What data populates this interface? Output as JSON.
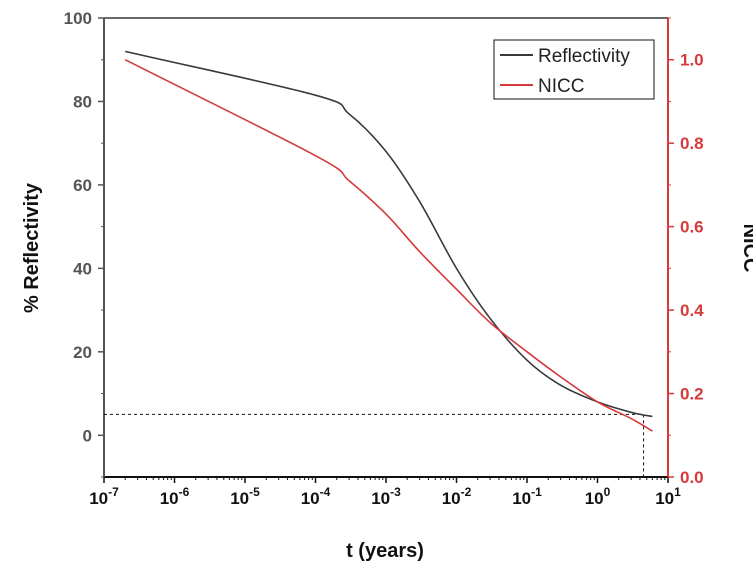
{
  "chart_data": {
    "type": "line",
    "title": "",
    "xlabel": "t (years)",
    "ylabel_left": "% Reflectivity",
    "ylabel_right": "NICC",
    "x_scale": "log",
    "x_ticks": [
      {
        "value": 1e-07,
        "base": "10",
        "exp": "-7"
      },
      {
        "value": 1e-06,
        "base": "10",
        "exp": "-6"
      },
      {
        "value": 1e-05,
        "base": "10",
        "exp": "-5"
      },
      {
        "value": 0.0001,
        "base": "10",
        "exp": "-4"
      },
      {
        "value": 0.001,
        "base": "10",
        "exp": "-3"
      },
      {
        "value": 0.01,
        "base": "10",
        "exp": "-2"
      },
      {
        "value": 0.1,
        "base": "10",
        "exp": "-1"
      },
      {
        "value": 1,
        "base": "10",
        "exp": "0"
      },
      {
        "value": 10,
        "base": "10",
        "exp": "1"
      }
    ],
    "xlim": [
      1e-07,
      10
    ],
    "ylim_left": [
      -10,
      100
    ],
    "ylim_right": [
      0.0,
      1.1
    ],
    "yticks_left": [
      "0",
      "20",
      "40",
      "60",
      "80",
      "100"
    ],
    "yticks_right": [
      "0.0",
      "0.2",
      "0.4",
      "0.6",
      "0.8",
      "1.0"
    ],
    "legend_position": "top-right",
    "grid": false,
    "series": [
      {
        "name": "Reflectivity",
        "axis": "left",
        "color": "#3a3a3a",
        "x": [
          2e-07,
          0.0001,
          0.0003,
          0.001,
          0.003,
          0.01,
          0.03,
          0.1,
          0.3,
          1,
          3,
          6
        ],
        "y": [
          92,
          81.5,
          77,
          68,
          56,
          40,
          28,
          18,
          12,
          8,
          5.5,
          4.5
        ]
      },
      {
        "name": "NICC",
        "axis": "right",
        "color": "#d63a3a",
        "x": [
          2e-07,
          0.0001,
          0.0003,
          0.001,
          0.003,
          0.01,
          0.03,
          0.1,
          0.3,
          1,
          3,
          6
        ],
        "y": [
          1.0,
          0.77,
          0.71,
          0.63,
          0.54,
          0.45,
          0.37,
          0.3,
          0.24,
          0.18,
          0.14,
          0.11
        ]
      }
    ],
    "reference_lines": [
      {
        "orientation": "horizontal",
        "axis": "left",
        "value": 5,
        "style": "dashed"
      },
      {
        "orientation": "vertical",
        "value": 4.5,
        "style": "dashed"
      }
    ],
    "colors": {
      "left_axis": "#555555",
      "right_axis": "#d63a3a",
      "reflectivity": "#3a3a3a",
      "nicc": "#d63a3a"
    }
  }
}
